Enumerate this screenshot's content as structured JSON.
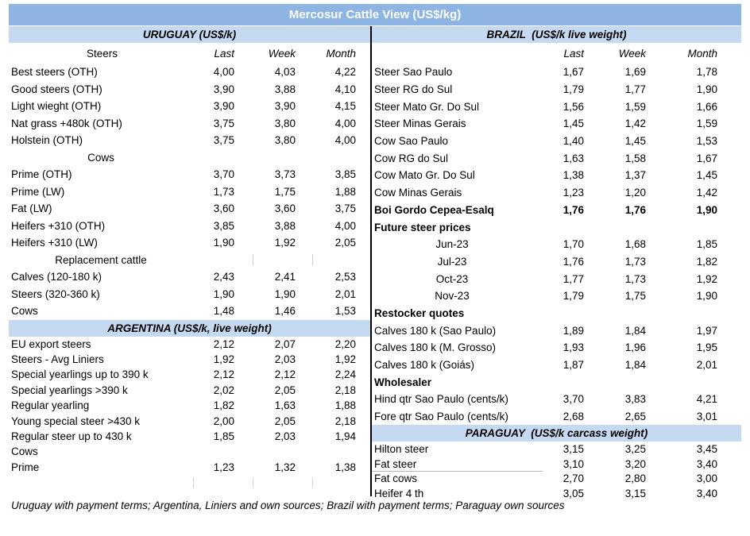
{
  "title": "Mercosur Cattle View (US$/kg)",
  "footer": "Uruguay with payment terms; Argentina, Liniers and own sources; Brazil with payment terms; Paraguay own sources",
  "colors": {
    "title_bg": "#8DB4E2",
    "title_text": "#FFFFFF",
    "section_bg": "#C5D9F1",
    "section_text": "#000000",
    "divider": "#000000",
    "body_text": "#000000"
  },
  "columns": [
    {
      "side": "left",
      "sections": [
        {
          "key": "uruguay",
          "header": "URUGUAY (US$/k)",
          "col_headers": {
            "label": "Steers",
            "last": "Last",
            "week": "Week",
            "month": "Month"
          },
          "rows": [
            {
              "label": "Best steers (OTH)",
              "last": "4,00",
              "week": "4,03",
              "month": "4,22",
              "style": "data"
            },
            {
              "label": "Good steers (OTH)",
              "last": "3,90",
              "week": "3,88",
              "month": "4,10",
              "style": "data"
            },
            {
              "label": "Light wieght (OTH)",
              "last": "3,90",
              "week": "3,90",
              "month": "4,15",
              "style": "data"
            },
            {
              "label": "Nat grass +480k (OTH)",
              "last": "3,75",
              "week": "3,80",
              "month": "4,00",
              "style": "data"
            },
            {
              "label": "Holstein (OTH)",
              "last": "3,75",
              "week": "3,80",
              "month": "4,00",
              "style": "data"
            },
            {
              "label": "Cows",
              "last": "",
              "week": "",
              "month": "",
              "style": "center"
            },
            {
              "label": "Prime (OTH)",
              "last": "3,70",
              "week": "3,73",
              "month": "3,85",
              "style": "data"
            },
            {
              "label": "Prime (LW)",
              "last": "1,73",
              "week": "1,75",
              "month": "1,88",
              "style": "data"
            },
            {
              "label": "Fat (LW)",
              "last": "3,60",
              "week": "3,60",
              "month": "3,75",
              "style": "data"
            },
            {
              "label": "Heifers +310 (OTH)",
              "last": "3,85",
              "week": "3,88",
              "month": "4,00",
              "style": "data"
            },
            {
              "label": "Heifers +310 (LW)",
              "last": "1,90",
              "week": "1,92",
              "month": "2,05",
              "style": "data"
            },
            {
              "label": "Replacement cattle",
              "last": "",
              "week": "",
              "month": "",
              "style": "center",
              "marks": "mid"
            },
            {
              "label": "Calves (120-180 k)",
              "last": "2,43",
              "week": "2,41",
              "month": "2,53",
              "style": "data"
            },
            {
              "label": "Steers (320-360 k)",
              "last": "1,90",
              "week": "1,90",
              "month": "2,01",
              "style": "data"
            },
            {
              "label": "Cows",
              "last": "1,48",
              "week": "1,46",
              "month": "1,53",
              "style": "data"
            }
          ]
        },
        {
          "key": "argentina",
          "header": "ARGENTINA (US$/k, live weight)",
          "rows": [
            {
              "label": "EU export steers",
              "last": "2,12",
              "week": "2,07",
              "month": "2,20",
              "style": "data"
            },
            {
              "label": "Steers - Avg Liniers",
              "last": "1,92",
              "week": "2,03",
              "month": "1,92",
              "style": "data"
            },
            {
              "label": "Special yearlings up to 390 k",
              "last": "2,12",
              "week": "2,12",
              "month": "2,24",
              "style": "data"
            },
            {
              "label": "Special yearlings >390 k",
              "last": "2,02",
              "week": "2,05",
              "month": "2,18",
              "style": "data"
            },
            {
              "label": "Regular yearling",
              "last": "1,82",
              "week": "1,63",
              "month": "1,88",
              "style": "data"
            },
            {
              "label": "Young special steer >430 k",
              "last": "2,00",
              "week": "2,05",
              "month": "2,18",
              "style": "data"
            },
            {
              "label": "Regular steer up to 430 k",
              "last": "1,85",
              "week": "2,03",
              "month": "1,94",
              "style": "data"
            },
            {
              "label": "Cows",
              "last": "",
              "week": "",
              "month": "",
              "style": "plain"
            },
            {
              "label": "Prime",
              "last": "1,23",
              "week": "1,32",
              "month": "1,38",
              "style": "data"
            },
            {
              "label": "",
              "last": "",
              "week": "",
              "month": "",
              "style": "blank",
              "marks": "all"
            }
          ]
        }
      ]
    },
    {
      "side": "right",
      "sections": [
        {
          "key": "brazil",
          "header": "BRAZIL  (US$/k live weight)",
          "col_headers": {
            "label": "",
            "last": "Last",
            "week": "Week",
            "month": "Month"
          },
          "rows": [
            {
              "label": "Steer Sao Paulo",
              "last": "1,67",
              "week": "1,69",
              "month": "1,78",
              "style": "data"
            },
            {
              "label": "Steer RG do Sul",
              "last": "1,79",
              "week": "1,77",
              "month": "1,90",
              "style": "data"
            },
            {
              "label": "Steer Mato Gr. Do Sul",
              "last": "1,56",
              "week": "1,59",
              "month": "1,66",
              "style": "data"
            },
            {
              "label": "Steer Minas Gerais",
              "last": "1,45",
              "week": "1,42",
              "month": "1,59",
              "style": "data"
            },
            {
              "label": "Cow Sao Paulo",
              "last": "1,40",
              "week": "1,45",
              "month": "1,53",
              "style": "data"
            },
            {
              "label": "Cow RG do Sul",
              "last": "1,63",
              "week": "1,58",
              "month": "1,67",
              "style": "data"
            },
            {
              "label": "Cow Mato Gr. Do Sul",
              "last": "1,38",
              "week": "1,37",
              "month": "1,45",
              "style": "data"
            },
            {
              "label": "Cow Minas Gerais",
              "last": "1,23",
              "week": "1,20",
              "month": "1,42",
              "style": "data"
            },
            {
              "label": "Boi Gordo Cepea-Esalq",
              "last": "1,76",
              "week": "1,76",
              "month": "1,90",
              "style": "bolddata"
            },
            {
              "label": "Future steer prices",
              "last": "",
              "week": "",
              "month": "",
              "style": "boldhead"
            },
            {
              "label": "Jun-23",
              "last": "1,70",
              "week": "1,68",
              "month": "1,85",
              "style": "month"
            },
            {
              "label": "Jul-23",
              "last": "1,76",
              "week": "1,73",
              "month": "1,82",
              "style": "month"
            },
            {
              "label": "Oct-23",
              "last": "1,77",
              "week": "1,73",
              "month": "1,92",
              "style": "month"
            },
            {
              "label": "Nov-23",
              "last": "1,79",
              "week": "1,75",
              "month": "1,90",
              "style": "month"
            },
            {
              "label": "Restocker quotes",
              "last": "",
              "week": "",
              "month": "",
              "style": "boldhead"
            },
            {
              "label": "Calves 180 k (Sao Paulo)",
              "last": "1,89",
              "week": "1,84",
              "month": "1,97",
              "style": "data"
            },
            {
              "label": "Calves 180 k (M. Grosso)",
              "last": "1,93",
              "week": "1,96",
              "month": "1,95",
              "style": "data"
            },
            {
              "label": "Calves 180 k (Goiás)",
              "last": "1,87",
              "week": "1,84",
              "month": "2,01",
              "style": "data"
            },
            {
              "label": "Wholesaler",
              "last": "",
              "week": "",
              "month": "",
              "style": "boldhead"
            },
            {
              "label": "Hind qtr Sao Paulo (cents/k)",
              "last": "3,70",
              "week": "3,83",
              "month": "4,21",
              "style": "data"
            },
            {
              "label": "Fore qtr Sao Paulo (cents/k)",
              "last": "2,68",
              "week": "2,65",
              "month": "3,01",
              "style": "data"
            }
          ]
        },
        {
          "key": "paraguay",
          "header": "PARAGUAY  (US$/k carcass weight)",
          "rows": [
            {
              "label": "Hilton steer",
              "last": "3,15",
              "week": "3,25",
              "month": "3,45",
              "style": "data"
            },
            {
              "label": "Fat steer",
              "last": "3,10",
              "week": "3,20",
              "month": "3,40",
              "style": "data",
              "marks": "underline"
            },
            {
              "label": "Fat cows",
              "last": "2,70",
              "week": "2,80",
              "month": "3,00",
              "style": "data"
            },
            {
              "label": "Heifer 4 th",
              "last": "3,05",
              "week": "3,15",
              "month": "3,40",
              "style": "data"
            }
          ]
        }
      ]
    }
  ]
}
